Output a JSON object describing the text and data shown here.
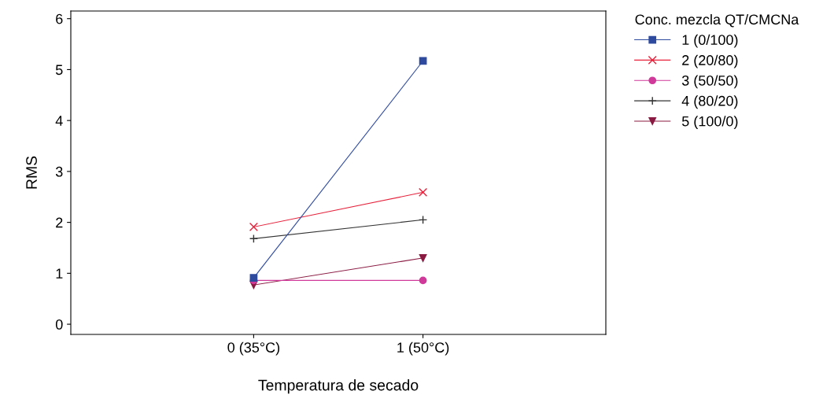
{
  "chart_data": {
    "type": "line",
    "xlabel": "Temperatura de secado",
    "ylabel": "RMS",
    "legend_title": "Conc. mezcla QT/CMCNa",
    "categories": [
      "0 (35°C)",
      "1 (50°C)"
    ],
    "ylim": [
      -0.2,
      6.15
    ],
    "yticks": [
      0,
      1,
      2,
      3,
      4,
      5,
      6
    ],
    "grid": false,
    "legend": "right",
    "series": [
      {
        "name": "1 (0/100)",
        "color": "#2e4a9e",
        "marker": "square",
        "values": [
          0.91,
          5.17
        ]
      },
      {
        "name": "2 (20/80)",
        "color": "#e8203a",
        "marker": "cross",
        "values": [
          1.91,
          2.59
        ]
      },
      {
        "name": "3 (50/50)",
        "color": "#d0399a",
        "marker": "circle",
        "values": [
          0.86,
          0.86
        ]
      },
      {
        "name": "4 (80/20)",
        "color": "#333333",
        "marker": "plus",
        "values": [
          1.68,
          2.05
        ]
      },
      {
        "name": "5 (100/0)",
        "color": "#8b1a42",
        "marker": "triangle_down",
        "values": [
          0.77,
          1.3
        ]
      }
    ]
  }
}
